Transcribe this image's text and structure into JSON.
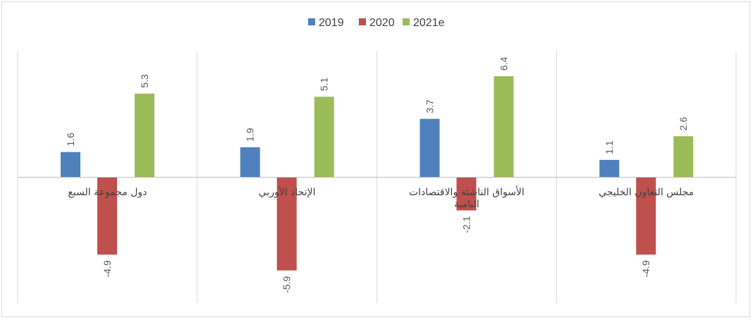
{
  "chart_data": {
    "type": "bar",
    "title": "",
    "xlabel": "",
    "ylabel": "",
    "ylim": [
      -8,
      8
    ],
    "grid": false,
    "legend_position": "top",
    "categories": [
      "دول مجموعة السبع",
      "الإتحاد الأوربي",
      "الأسواق الناشئة والاقتصادات النامية",
      "مجلس التعاون الخليجي"
    ],
    "series": [
      {
        "name": "2019",
        "color": "#4f81bd",
        "values": [
          1.6,
          1.9,
          3.7,
          1.1
        ],
        "labels": [
          "1.6",
          "1.9",
          "3.7",
          "1.1"
        ]
      },
      {
        "name": "2020",
        "color": "#c0504d",
        "values": [
          -4.9,
          -5.9,
          -2.1,
          -4.9
        ],
        "labels": [
          "-4.9",
          "-5.9",
          "-2.1",
          "-4.9"
        ]
      },
      {
        "name": "2021e",
        "color": "#9bbb59",
        "values": [
          5.3,
          5.1,
          6.4,
          2.6
        ],
        "labels": [
          "5.3",
          "5.1",
          "6.4",
          "2.6"
        ]
      }
    ]
  }
}
